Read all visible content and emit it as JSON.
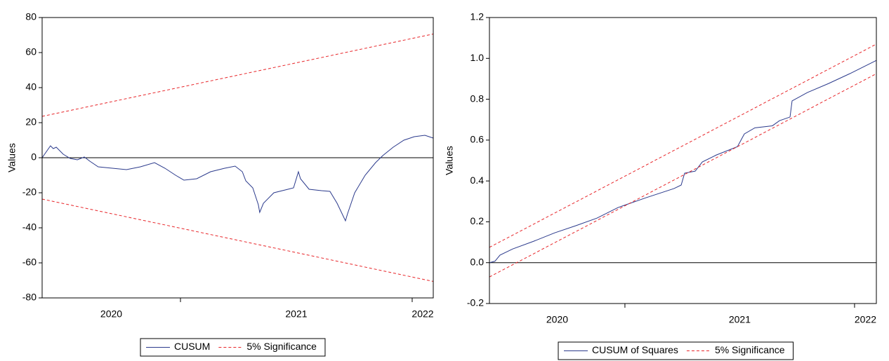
{
  "chart_data": [
    {
      "type": "line",
      "y_label": "Values",
      "xlim": [
        2020.403,
        2022.091
      ],
      "xticks": [
        2021,
        2022
      ],
      "year_labels": [
        2020,
        2021,
        2022
      ],
      "ylim": [
        -80,
        80
      ],
      "yticks": [
        -80,
        -60,
        -40,
        -20,
        0,
        20,
        40,
        60,
        80
      ],
      "zero_line": true,
      "series": [
        {
          "name": "CUSUM",
          "color": "#2b3a8c",
          "x": [
            2020.403,
            2020.439,
            2020.451,
            2020.464,
            2020.494,
            2020.524,
            2020.555,
            2020.585,
            2020.609,
            2020.645,
            2020.706,
            2020.767,
            2020.827,
            2020.888,
            2020.933,
            2020.979,
            2021.015,
            2021.07,
            2021.13,
            2021.191,
            2021.236,
            2021.267,
            2021.282,
            2021.312,
            2021.336,
            2021.342,
            2021.358,
            2021.403,
            2021.464,
            2021.488,
            2021.509,
            2021.518,
            2021.555,
            2021.609,
            2021.645,
            2021.676,
            2021.712,
            2021.721,
            2021.752,
            2021.797,
            2021.842,
            2021.873,
            2021.918,
            2021.964,
            2022.009,
            2022.055,
            2022.091
          ],
          "values": [
            0,
            6.8,
            5.2,
            6,
            2,
            -0.4,
            -1.2,
            0.4,
            -2,
            -5.2,
            -6,
            -6.8,
            -5.2,
            -2.8,
            -6,
            -10,
            -12.8,
            -12,
            -8,
            -6,
            -4.8,
            -8,
            -13.2,
            -17.2,
            -26.8,
            -31.2,
            -26,
            -20,
            -18,
            -17.2,
            -8,
            -12,
            -18,
            -18.8,
            -19.2,
            -26,
            -36,
            -32,
            -20,
            -10,
            -2.8,
            1.2,
            6,
            10,
            12,
            12.8,
            11.2
          ]
        },
        {
          "name": "5% Significance",
          "color": "#e8262a",
          "dashed": true,
          "x": [
            2020.403,
            2022.091
          ],
          "values": [
            23.6,
            70.6
          ],
          "lower": [
            -23.6,
            -70.6
          ]
        }
      ]
    },
    {
      "type": "line",
      "y_label": "Values",
      "xlim": [
        2020.41,
        2022.095
      ],
      "xticks": [
        2021,
        2022
      ],
      "year_labels": [
        2020,
        2021,
        2022
      ],
      "ylim": [
        -0.2,
        1.2
      ],
      "yticks": [
        -0.2,
        {
          "value": 0,
          "label": "0.0"
        },
        0.2,
        0.4,
        0.6,
        0.8,
        {
          "value": 1,
          "label": "1.0"
        },
        1.2
      ],
      "zero_line": true,
      "series": [
        {
          "name": "CUSUM of Squares",
          "color": "#2b3a8c",
          "x": [
            2020.41,
            2020.434,
            2020.456,
            2020.511,
            2020.603,
            2020.694,
            2020.786,
            2020.878,
            2020.97,
            2021.092,
            2021.214,
            2021.245,
            2021.26,
            2021.306,
            2021.337,
            2021.398,
            2021.49,
            2021.52,
            2021.566,
            2021.642,
            2021.673,
            2021.719,
            2021.728,
            2021.795,
            2021.887,
            2021.979,
            2022.095
          ],
          "values": [
            0,
            0.007,
            0.037,
            0.067,
            0.105,
            0.146,
            0.181,
            0.218,
            0.27,
            0.318,
            0.363,
            0.38,
            0.438,
            0.448,
            0.493,
            0.527,
            0.568,
            0.63,
            0.66,
            0.67,
            0.695,
            0.713,
            0.792,
            0.833,
            0.877,
            0.925,
            0.99
          ]
        },
        {
          "name": "5% Significance",
          "color": "#e8262a",
          "dashed": true,
          "x": [
            2020.41,
            2022.095
          ],
          "values": [
            0.075,
            1.07
          ],
          "lower": [
            -0.07,
            0.925
          ]
        }
      ]
    }
  ]
}
